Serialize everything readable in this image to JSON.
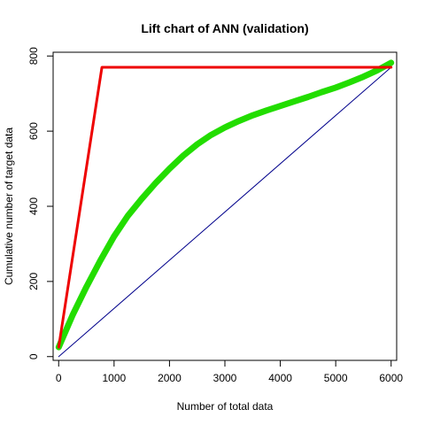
{
  "chart_data": {
    "type": "line",
    "title": "Lift chart of ANN (validation)",
    "xlabel": "Number of total data",
    "ylabel": "Cumulative number of target data",
    "xlim": [
      -100,
      6100
    ],
    "ylim": [
      -10,
      810
    ],
    "xticks": [
      0,
      1000,
      2000,
      3000,
      4000,
      5000,
      6000
    ],
    "yticks": [
      0,
      200,
      400,
      600,
      800
    ],
    "grid": false,
    "series": [
      {
        "color": "#00008b",
        "x": [
          0,
          6000
        ],
        "y": [
          0,
          770
        ]
      },
      {
        "color": "#22dd00",
        "x": [
          0,
          250,
          500,
          750,
          1000,
          1250,
          1500,
          1750,
          2000,
          2250,
          2500,
          2750,
          3000,
          3250,
          3500,
          3750,
          4000,
          4250,
          4500,
          4750,
          5000,
          5250,
          5500,
          5750,
          6000
        ],
        "y": [
          25,
          110,
          185,
          255,
          320,
          375,
          420,
          462,
          500,
          535,
          565,
          590,
          610,
          627,
          642,
          655,
          667,
          679,
          691,
          704,
          716,
          730,
          745,
          762,
          782
        ]
      },
      {
        "color": "#ee0000",
        "x": [
          0,
          780,
          6000
        ],
        "y": [
          25,
          770,
          770
        ]
      }
    ]
  }
}
